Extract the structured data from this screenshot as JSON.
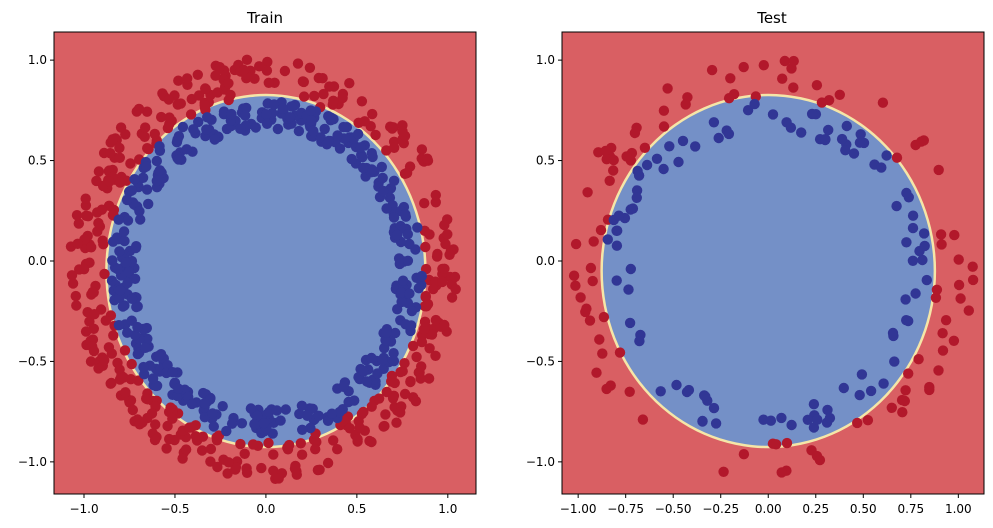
{
  "chart_data": [
    {
      "type": "scatter",
      "title": "Train",
      "xlim": [
        -1.165,
        1.155
      ],
      "ylim": [
        -1.16,
        1.14
      ],
      "xticks": [
        -1.0,
        -0.5,
        0.0,
        0.5,
        1.0
      ],
      "xtick_labels": [
        "−1.0",
        "−0.5",
        "0.0",
        "0.5",
        "1.0"
      ],
      "yticks": [
        -1.0,
        -0.5,
        0.0,
        0.5,
        1.0
      ],
      "ytick_labels": [
        "−1.0",
        "−0.5",
        "0.0",
        "0.5",
        "1.0"
      ],
      "grid": false,
      "background_region": {
        "label": 0,
        "color": "#d95f63"
      },
      "decision_region": {
        "label": 1,
        "color": "#7490c7",
        "boundary_color": "#f5e6a8",
        "center": [
          0.0,
          -0.05
        ],
        "radius": 0.87
      },
      "series": [
        {
          "class": 0,
          "color": "#b2182b",
          "radius_range": [
            0.88,
            1.08
          ],
          "count": 400
        },
        {
          "class": 1,
          "color": "#313695",
          "radius_range": [
            0.72,
            0.86
          ],
          "count": 400
        }
      ]
    },
    {
      "type": "scatter",
      "title": "Test",
      "xlim": [
        -1.085,
        1.135
      ],
      "ylim": [
        -1.16,
        1.14
      ],
      "xticks": [
        -1.0,
        -0.75,
        -0.5,
        -0.25,
        0.0,
        0.25,
        0.5,
        0.75,
        1.0
      ],
      "xtick_labels": [
        "−1.00",
        "−0.75",
        "−0.50",
        "−0.25",
        "0.00",
        "0.25",
        "0.50",
        "0.75",
        "1.00"
      ],
      "yticks": [
        -1.0,
        -0.5,
        0.0,
        0.5,
        1.0
      ],
      "ytick_labels": [
        "−1.0",
        "−0.5",
        "0.0",
        "0.5",
        "1.0"
      ],
      "grid": false,
      "background_region": {
        "label": 0,
        "color": "#d95f63"
      },
      "decision_region": {
        "label": 1,
        "color": "#7490c7",
        "boundary_color": "#f5e6a8",
        "center": [
          0.0,
          -0.05
        ],
        "radius": 0.87
      },
      "series": [
        {
          "class": 0,
          "color": "#b2182b",
          "radius_range": [
            0.88,
            1.08
          ],
          "count": 100
        },
        {
          "class": 1,
          "color": "#313695",
          "radius_range": [
            0.72,
            0.86
          ],
          "count": 100
        }
      ]
    }
  ]
}
